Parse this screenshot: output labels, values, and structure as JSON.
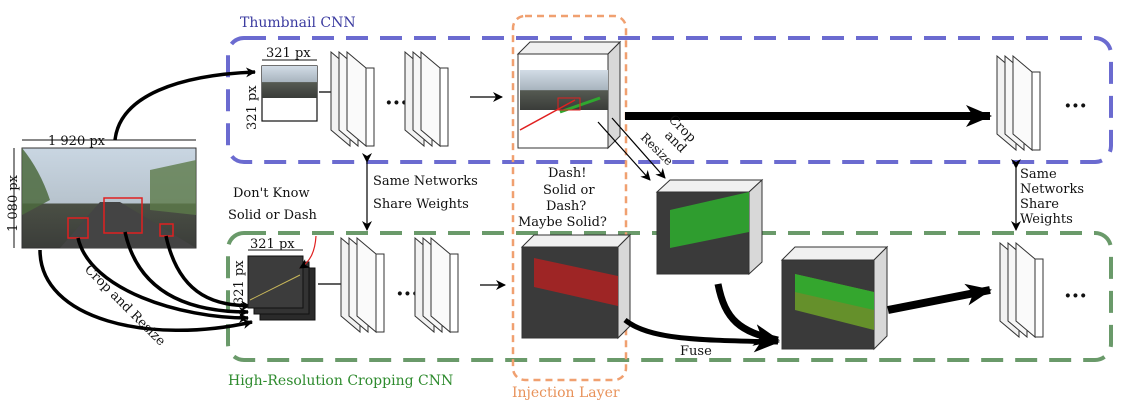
{
  "labels": {
    "thumbnail_cnn": "Thumbnail CNN",
    "high_res_cnn": "High-Resolution Cropping CNN",
    "injection_layer": "Injection Layer",
    "width_full": "1 920 px",
    "height_full": "1 080 px",
    "crop_w_top": "321 px",
    "crop_h_top": "321 px",
    "crop_w_bottom": "321 px",
    "crop_h_bottom": "321 px",
    "crop_and_resize": "Crop and Resize",
    "crop_and_resize_top_1": "Crop",
    "crop_and_resize_top_2": "and",
    "crop_and_resize_top_3": "Resize",
    "dont_know_1": "Don't Know",
    "dont_know_2": "Solid or Dash",
    "same_net_mid_1": "Same Networks",
    "same_net_mid_2": "Share Weights",
    "question_1": "Dash!",
    "question_2": "Solid or",
    "question_3": "Dash?",
    "question_4": "Maybe Solid?",
    "same_net_right_1": "Same",
    "same_net_right_2": "Networks",
    "same_net_right_3": "Share",
    "same_net_right_4": "Weights",
    "fuse": "Fuse",
    "ellipsis": "···"
  },
  "colors": {
    "thumbnail_border": "#6b6bd0",
    "highres_border": "#6a9a6a",
    "injection_border": "#f0a070",
    "dash_green": "#2fa82f",
    "solid_red": "#b02222",
    "road": "#3a3a3a"
  }
}
